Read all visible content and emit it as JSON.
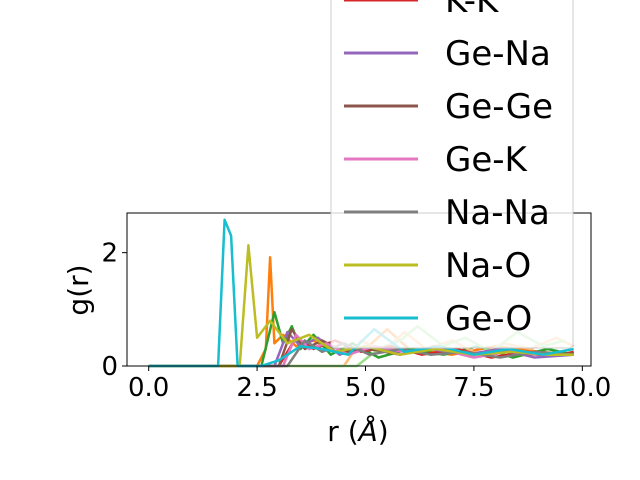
{
  "chart_data": {
    "type": "line",
    "title": "",
    "xlabel": "r ($\\AA$)",
    "xlabel_main": "r (",
    "xlabel_unit": "Å",
    "xlabel_close": ")",
    "ylabel": "g(r)",
    "xlim": [
      -0.5,
      10.2
    ],
    "ylim": [
      0,
      2.7
    ],
    "xticks": [
      0.0,
      2.5,
      5.0,
      7.5,
      10.0
    ],
    "xtick_labels": [
      "0.0",
      "2.5",
      "5.0",
      "7.5",
      "10.0"
    ],
    "yticks": [
      0,
      2
    ],
    "ytick_labels": [
      "0",
      "2"
    ],
    "grid": false,
    "legend_position": "upper-right",
    "series": [
      {
        "name": "",
        "color": "#ff7f0e",
        "x": [
          0,
          2.5,
          2.7,
          2.8,
          2.9,
          3.1,
          3.4,
          3.8,
          4.3,
          5.0,
          5.5,
          6.0,
          7.0,
          8.0,
          9.0,
          9.8
        ],
        "y": [
          0,
          0,
          0.3,
          1.92,
          0.4,
          0.55,
          0.35,
          0.45,
          0.25,
          0.3,
          0.65,
          0.3,
          0.2,
          0.35,
          0.25,
          0.2
        ]
      },
      {
        "name": "",
        "color": "#2ca02c",
        "x": [
          0,
          2.6,
          2.9,
          3.1,
          3.3,
          3.5,
          3.8,
          4.2,
          4.7,
          5.3,
          6.0,
          6.8,
          7.6,
          8.4,
          9.2,
          9.8
        ],
        "y": [
          0,
          0,
          0.95,
          0.4,
          0.7,
          0.3,
          0.55,
          0.2,
          0.4,
          0.15,
          0.3,
          0.2,
          0.35,
          0.15,
          0.3,
          0.2
        ]
      },
      {
        "name": "",
        "color": "#ffbb78",
        "x": [
          0,
          4.5,
          4.9,
          5.4,
          5.9,
          6.4,
          7.0,
          7.6,
          8.2,
          8.8,
          9.4,
          9.8
        ],
        "y": [
          0,
          0,
          0.45,
          0.25,
          0.6,
          0.3,
          0.45,
          0.2,
          0.4,
          0.3,
          0.5,
          0.35
        ]
      },
      {
        "name": "",
        "color": "#98df8a",
        "x": [
          0,
          4.8,
          5.3,
          5.8,
          6.2,
          6.8,
          7.3,
          7.9,
          8.5,
          9.1,
          9.6
        ],
        "y": [
          0,
          0,
          0.3,
          0.45,
          0.7,
          0.35,
          0.5,
          0.25,
          0.6,
          0.35,
          0.45
        ]
      },
      {
        "name": "K-K",
        "color": "#d62728",
        "x": [
          0,
          3.0,
          3.4,
          3.8,
          4.3,
          4.9,
          5.6,
          6.3,
          7.1,
          7.9,
          8.7,
          9.5,
          9.8
        ],
        "y": [
          0,
          0,
          0.5,
          0.3,
          0.45,
          0.25,
          0.35,
          0.2,
          0.3,
          0.15,
          0.25,
          0.2,
          0.25
        ]
      },
      {
        "name": "Ge-Na",
        "color": "#9467bd",
        "x": [
          0,
          2.9,
          3.2,
          3.5,
          3.9,
          4.4,
          5.0,
          5.7,
          6.5,
          7.3,
          8.1,
          8.9,
          9.8
        ],
        "y": [
          0,
          0,
          0.6,
          0.35,
          0.5,
          0.2,
          0.35,
          0.25,
          0.3,
          0.2,
          0.3,
          0.15,
          0.2
        ]
      },
      {
        "name": "Ge-Ge",
        "color": "#8c564b",
        "x": [
          0,
          3.0,
          3.3,
          3.6,
          4.0,
          4.5,
          5.1,
          5.8,
          6.6,
          7.4,
          8.2,
          9.0,
          9.8
        ],
        "y": [
          0,
          0,
          0.65,
          0.3,
          0.45,
          0.25,
          0.3,
          0.2,
          0.35,
          0.2,
          0.25,
          0.2,
          0.22
        ]
      },
      {
        "name": "Ge-K",
        "color": "#e377c2",
        "x": [
          0,
          3.1,
          3.4,
          3.7,
          4.1,
          4.6,
          5.2,
          5.9,
          6.7,
          7.5,
          8.3,
          9.1,
          9.8
        ],
        "y": [
          0,
          0,
          0.55,
          0.3,
          0.4,
          0.2,
          0.35,
          0.25,
          0.3,
          0.15,
          0.25,
          0.2,
          0.2
        ]
      },
      {
        "name": "Na-Na",
        "color": "#7f7f7f",
        "x": [
          0,
          3.2,
          3.6,
          4.0,
          4.5,
          5.1,
          5.8,
          6.5,
          7.3,
          8.1,
          8.9,
          9.8
        ],
        "y": [
          0,
          0,
          0.45,
          0.25,
          0.4,
          0.2,
          0.3,
          0.2,
          0.25,
          0.15,
          0.25,
          0.2
        ]
      },
      {
        "name": "Na-O",
        "color": "#bcbd22",
        "x": [
          0,
          2.1,
          2.3,
          2.5,
          2.8,
          3.2,
          3.7,
          4.3,
          5.0,
          5.8,
          6.6,
          7.5,
          8.4,
          9.2,
          9.8
        ],
        "y": [
          0,
          0,
          2.13,
          0.5,
          0.8,
          0.4,
          0.55,
          0.25,
          0.35,
          0.2,
          0.3,
          0.2,
          0.25,
          0.2,
          0.2
        ]
      },
      {
        "name": "Ge-O",
        "color": "#17becf",
        "x": [
          0,
          1.6,
          1.75,
          1.9,
          2.05,
          2.3,
          2.6,
          3.0,
          3.5,
          4.0,
          4.6,
          5.2,
          5.9,
          6.7,
          7.5,
          8.3,
          9.1,
          9.8
        ],
        "y": [
          0,
          0,
          2.58,
          2.3,
          0,
          0,
          0,
          0.1,
          0.35,
          0.3,
          0.2,
          0.65,
          0.25,
          0.35,
          0.2,
          0.3,
          0.2,
          0.3
        ]
      }
    ]
  }
}
